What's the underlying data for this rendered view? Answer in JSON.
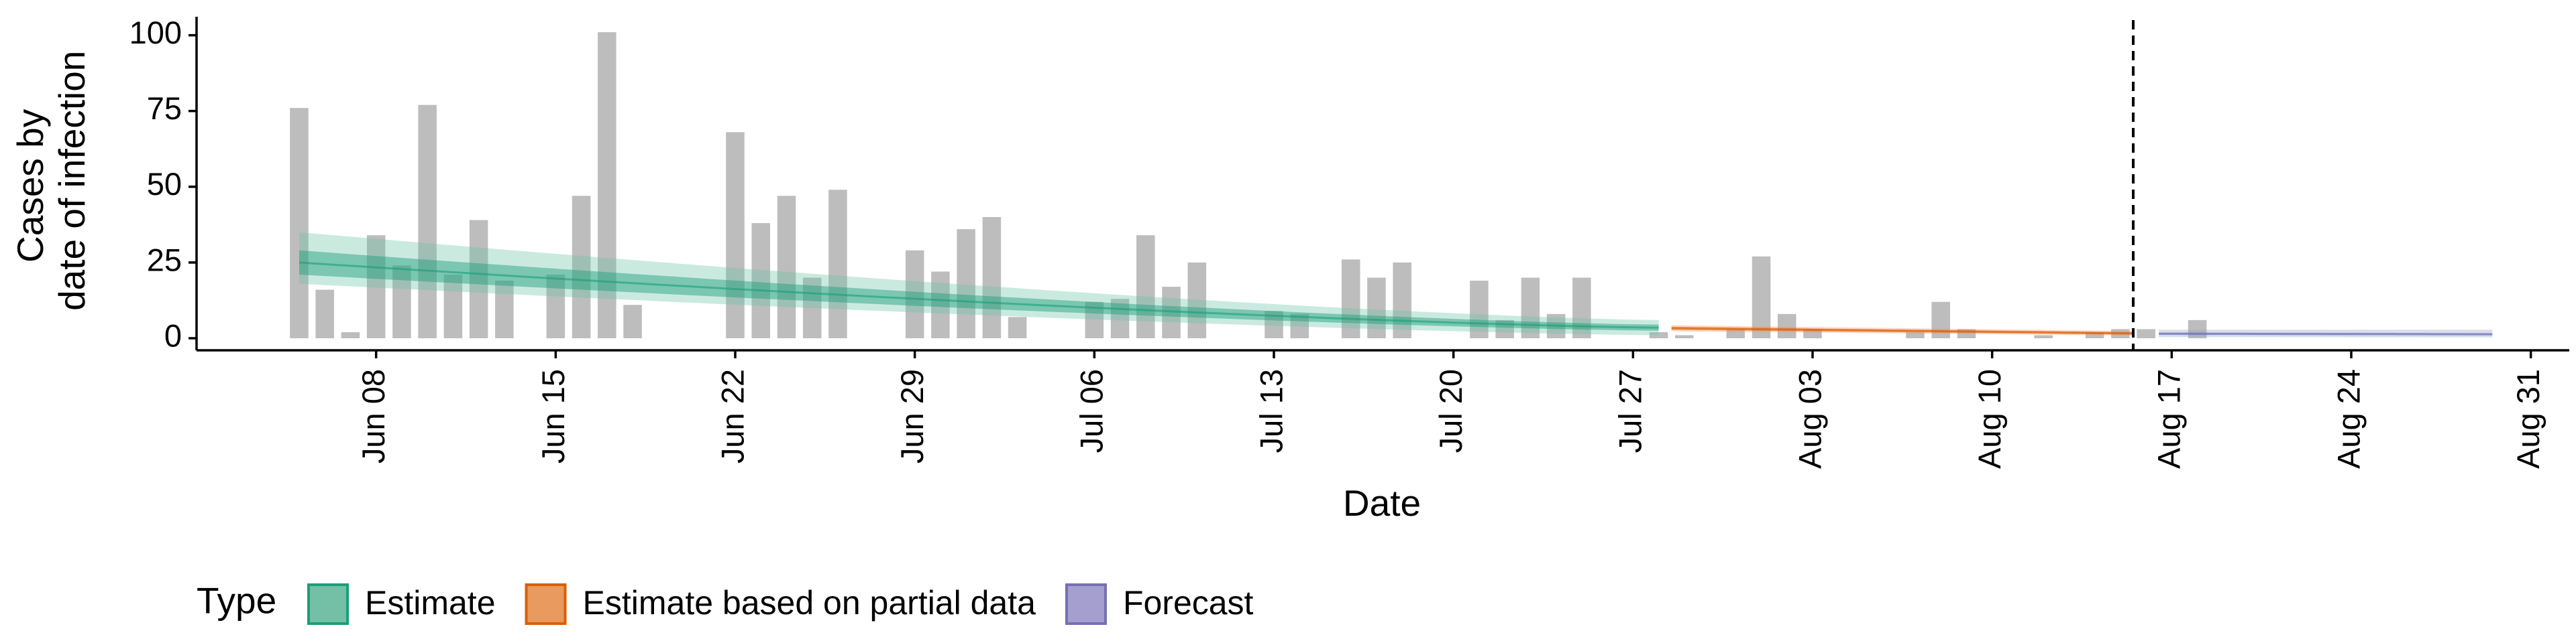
{
  "chart_data": {
    "type": "bar",
    "title": "",
    "xlabel": "Date",
    "ylabel_lines": [
      "Cases by",
      "date of infection"
    ],
    "ylim": [
      0,
      105
    ],
    "yticks": [
      0,
      25,
      50,
      75,
      100
    ],
    "x_start_date": "2020-06-01",
    "xlim_days": [
      0,
      92.5
    ],
    "xticks": [
      {
        "day": 7,
        "label": "Jun 08"
      },
      {
        "day": 14,
        "label": "Jun 15"
      },
      {
        "day": 21,
        "label": "Jun 22"
      },
      {
        "day": 28,
        "label": "Jun 29"
      },
      {
        "day": 35,
        "label": "Jul 06"
      },
      {
        "day": 42,
        "label": "Jul 13"
      },
      {
        "day": 49,
        "label": "Jul 20"
      },
      {
        "day": 56,
        "label": "Jul 27"
      },
      {
        "day": 63,
        "label": "Aug 03"
      },
      {
        "day": 70,
        "label": "Aug 10"
      },
      {
        "day": 77,
        "label": "Aug 17"
      },
      {
        "day": 84,
        "label": "Aug 24"
      },
      {
        "day": 91,
        "label": "Aug 31"
      }
    ],
    "bars": {
      "start_day": 4,
      "values": [
        76,
        16,
        2,
        34,
        24,
        77,
        21,
        39,
        19,
        0,
        21,
        47,
        101,
        11,
        0,
        0,
        0,
        68,
        38,
        47,
        20,
        49,
        0,
        0,
        29,
        22,
        36,
        40,
        7,
        0,
        0,
        12,
        13,
        34,
        17,
        25,
        0,
        0,
        9,
        8,
        0,
        26,
        20,
        25,
        0,
        0,
        19,
        6,
        20,
        8,
        20,
        0,
        0,
        2,
        1,
        0,
        3,
        27,
        8,
        3,
        0,
        0,
        0,
        2,
        12,
        3,
        0,
        0,
        1,
        0,
        2,
        3,
        3,
        0,
        6
      ]
    },
    "forecast_cutoff_day": 75.5,
    "series": [
      {
        "name": "Estimate",
        "type": "ribbon",
        "x_range": [
          4,
          57
        ],
        "median": [
          25,
          3.5
        ],
        "inner": [
          [
            21,
            29
          ],
          [
            2.5,
            4.5
          ]
        ],
        "outer": [
          [
            18,
            35
          ],
          [
            1,
            6
          ]
        ]
      },
      {
        "name": "Estimate based on partial data",
        "type": "ribbon",
        "x_range": [
          57.5,
          75.5
        ],
        "median": [
          3.3,
          1.6
        ],
        "inner": [
          [
            2.8,
            3.8
          ],
          [
            1.2,
            2.0
          ]
        ],
        "outer": [
          [
            2.3,
            4.3
          ],
          [
            0.9,
            2.4
          ]
        ]
      },
      {
        "name": "Forecast",
        "type": "ribbon",
        "x_range": [
          76.5,
          89.5
        ],
        "median": [
          1.5,
          1.3
        ],
        "inner": [
          [
            1.1,
            1.9
          ],
          [
            1.0,
            1.7
          ]
        ],
        "outer": [
          [
            0.4,
            2.8
          ],
          [
            0.3,
            2.8
          ]
        ]
      }
    ],
    "colors": {
      "bars": "#bdbdbd",
      "estimate": "#1b9e77",
      "partial": "#d95f02",
      "forecast": "#7570b3",
      "estimate_fill": "#66c2a5",
      "partial_fill": "#fc8d62",
      "forecast_fill": "#8da0cb"
    },
    "legend": {
      "title": "Type",
      "position": "bottom",
      "entries": [
        {
          "label": "Estimate",
          "fill": "#74c0a6",
          "stroke": "#1b9e77"
        },
        {
          "label": "Estimate based on partial data",
          "fill": "#e89a5f",
          "stroke": "#d95f02"
        },
        {
          "label": "Forecast",
          "fill": "#a59fcf",
          "stroke": "#7570b3"
        }
      ]
    }
  }
}
